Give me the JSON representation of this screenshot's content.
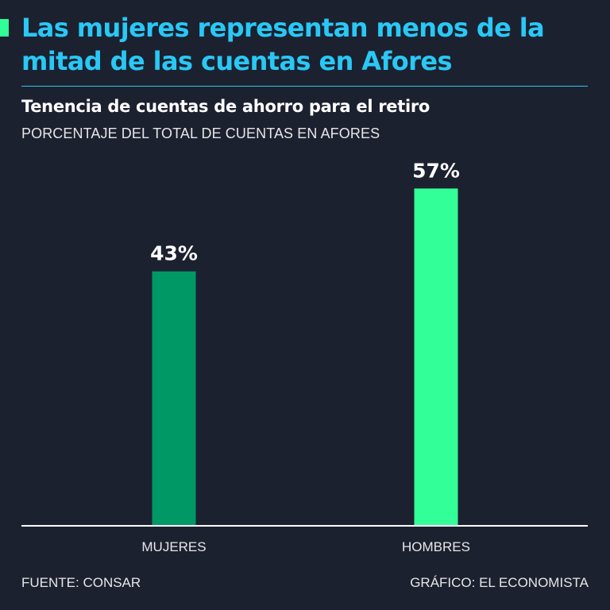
{
  "header": {
    "title": "Las mujeres representan menos de la mitad de las cuentas en Afores",
    "subtitle": "Tenencia de cuentas de ahorro para el retiro",
    "unit_label": "PORCENTAJE DEL TOTAL DE CUENTAS EN AFORES"
  },
  "footer": {
    "source": "FUENTE: CONSAR",
    "credit": "GRÁFICO: EL ECONOMISTA"
  },
  "colors": {
    "background": "#1c2130",
    "title": "#29c8f5",
    "accent": "#33ff99",
    "bar_mujeres": "#009966",
    "bar_hombres": "#33ff99",
    "axis": "#ffffff"
  },
  "chart_data": {
    "type": "bar",
    "categories": [
      "MUJERES",
      "HOMBRES"
    ],
    "values": [
      43,
      57
    ],
    "data_labels": [
      "43%",
      "57%"
    ],
    "title": "Tenencia de cuentas de ahorro para el retiro",
    "ylabel": "PORCENTAJE DEL TOTAL DE CUENTAS EN AFORES",
    "xlabel": "",
    "ylim": [
      0,
      100
    ],
    "grid": false,
    "legend": "none"
  }
}
